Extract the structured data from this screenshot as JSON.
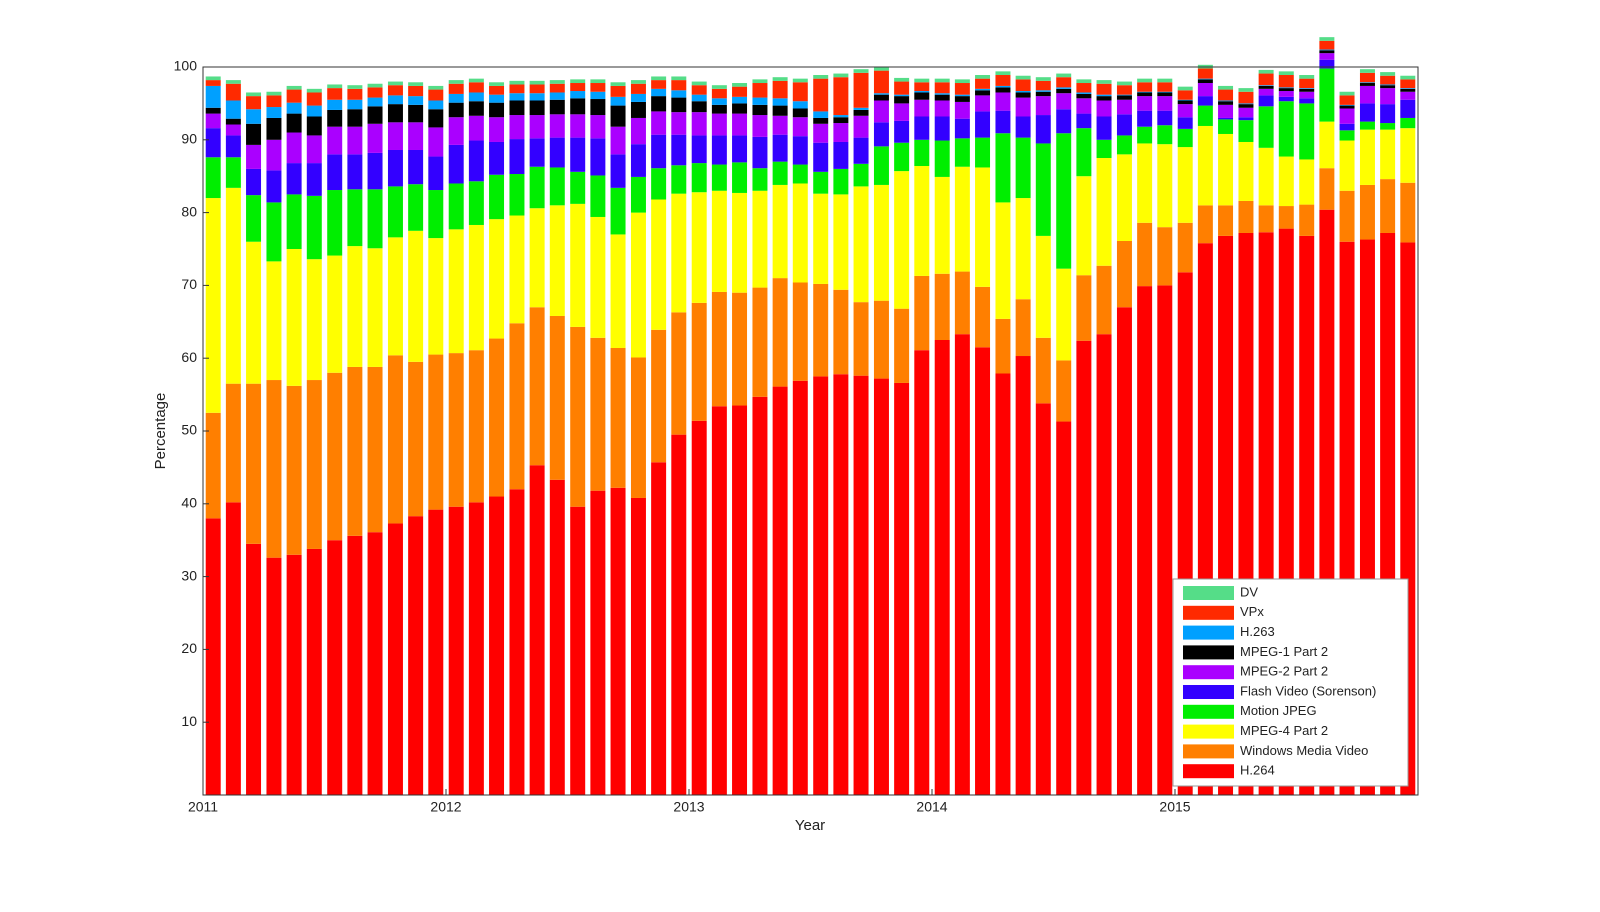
{
  "chart_data": {
    "type": "stacked-bar",
    "x_label": "Year",
    "y_label": "Percentage",
    "x": [
      2011.042,
      2011.125,
      2011.208,
      2011.292,
      2011.375,
      2011.458,
      2011.542,
      2011.625,
      2011.708,
      2011.792,
      2011.875,
      2011.958,
      2012.042,
      2012.125,
      2012.208,
      2012.292,
      2012.375,
      2012.458,
      2012.542,
      2012.625,
      2012.708,
      2012.792,
      2012.875,
      2012.958,
      2013.042,
      2013.125,
      2013.208,
      2013.292,
      2013.375,
      2013.458,
      2013.542,
      2013.625,
      2013.708,
      2013.792,
      2013.875,
      2013.958,
      2014.042,
      2014.125,
      2014.208,
      2014.292,
      2014.375,
      2014.458,
      2014.542,
      2014.625,
      2014.708,
      2014.792,
      2014.875,
      2014.958,
      2015.042,
      2015.125,
      2015.208,
      2015.292,
      2015.375,
      2015.458,
      2015.542,
      2015.625,
      2015.708,
      2015.792,
      2015.875,
      2015.958
    ],
    "xlim": [
      2011,
      2016
    ],
    "xticks": [
      2011,
      2012,
      2013,
      2014,
      2015
    ],
    "ylim": [
      0,
      100
    ],
    "yticks": [
      10,
      20,
      30,
      40,
      50,
      60,
      70,
      80,
      90,
      100
    ],
    "legend": "lower right",
    "series": [
      {
        "name": "H.264",
        "color": "#ff0000",
        "values": [
          38,
          40.2,
          34.5,
          32.6,
          33,
          33.8,
          35,
          35.6,
          36.1,
          37.3,
          38.3,
          39.2,
          39.6,
          40.2,
          41,
          42,
          45.3,
          43.3,
          39.6,
          41.8,
          42.2,
          40.8,
          45.7,
          49.5,
          51.4,
          53.4,
          53.5,
          54.7,
          56.1,
          56.9,
          57.5,
          57.8,
          57.6,
          57.2,
          56.6,
          61.1,
          62.5,
          63.3,
          61.5,
          57.9,
          60.3,
          53.8,
          51.3,
          62.4,
          63.3,
          67,
          69.9,
          70,
          71.8,
          75.8,
          76.8,
          77.2,
          77.3,
          77.8,
          76.8,
          80.4,
          76,
          76.3,
          77.2,
          75.9
        ]
      },
      {
        "name": "Windows Media Video",
        "color": "#ff7f00",
        "values": [
          14.5,
          16.3,
          22,
          24.4,
          23.2,
          23.2,
          23,
          23.2,
          22.7,
          23.1,
          21.2,
          21.3,
          21.1,
          20.9,
          21.7,
          22.8,
          21.7,
          22.5,
          24.7,
          21,
          19.2,
          19.3,
          18.2,
          16.8,
          16.2,
          15.7,
          15.5,
          15,
          14.9,
          13.5,
          12.7,
          11.6,
          10.1,
          10.7,
          10.2,
          10.2,
          9.1,
          8.6,
          8.3,
          7.5,
          7.8,
          9,
          8.4,
          9,
          9.4,
          9.1,
          8.7,
          8,
          6.8,
          5.2,
          4.2,
          4.4,
          3.7,
          3.1,
          4.3,
          5.7,
          7,
          7.5,
          7.4,
          8.2
        ]
      },
      {
        "name": "MPEG-4 Part 2",
        "color": "#ffff00",
        "values": [
          29.5,
          26.9,
          19.5,
          16.3,
          18.8,
          16.6,
          16.1,
          16.6,
          16.3,
          16.2,
          18,
          16,
          17,
          17.2,
          16.4,
          14.8,
          13.6,
          15.2,
          16.9,
          16.6,
          15.6,
          19.9,
          17.9,
          16.3,
          15.2,
          13.9,
          13.7,
          13.3,
          12.8,
          13.6,
          12.4,
          13.1,
          15.9,
          15.9,
          18.9,
          15.1,
          13.3,
          14.4,
          16.4,
          16,
          13.9,
          14,
          12.6,
          13.6,
          14.8,
          11.9,
          10.9,
          11.4,
          10.4,
          10.9,
          9.8,
          8.1,
          7.9,
          6.8,
          6.2,
          6.4,
          6.9,
          7.6,
          6.8,
          7.5
        ]
      },
      {
        "name": "Motion JPEG",
        "color": "#00ee00",
        "values": [
          5.6,
          4.2,
          6.4,
          8.1,
          7.5,
          8.7,
          9,
          7.8,
          8.1,
          7,
          6.4,
          6.6,
          6.3,
          6,
          6.1,
          5.7,
          5.7,
          5.2,
          4.4,
          5.7,
          6.4,
          4.9,
          4.3,
          3.9,
          4,
          3.6,
          4.2,
          3.1,
          3.2,
          2.6,
          3,
          3.5,
          3.1,
          5.3,
          3.9,
          3.6,
          5,
          3.9,
          4.1,
          9.5,
          8.3,
          12.7,
          18.6,
          6.6,
          2.5,
          2.6,
          2.3,
          2.6,
          2.5,
          2.8,
          2,
          3,
          5.7,
          7.6,
          7.7,
          7.3,
          1.4,
          1.1,
          0.9,
          1.4
        ]
      },
      {
        "name": "Flash Video (Sorenson)",
        "color": "#3300ff",
        "values": [
          4,
          3,
          3.6,
          4.4,
          4.3,
          4.5,
          4.9,
          4.8,
          5,
          5,
          4.7,
          4.6,
          5.3,
          5.6,
          4.5,
          4.8,
          3.9,
          4.1,
          4.7,
          5.1,
          4.6,
          4.5,
          4.6,
          4.2,
          3.8,
          4,
          3.7,
          4.3,
          3.7,
          3.9,
          4,
          3.7,
          3.6,
          3.3,
          3,
          3.2,
          3.3,
          2.7,
          3.6,
          3.1,
          2.9,
          3.9,
          3.3,
          2,
          3.2,
          2.9,
          2.2,
          2,
          1.6,
          1.3,
          0.2,
          0.4,
          1.5,
          0.6,
          0.7,
          1.2,
          0.9,
          2.5,
          2.6,
          2.5
        ]
      },
      {
        "name": "MPEG-2 Part 2",
        "color": "#aa00ff",
        "values": [
          2,
          1.5,
          3.3,
          4.2,
          4.2,
          3.8,
          3.8,
          3.8,
          4,
          3.8,
          3.8,
          4,
          3.8,
          3.4,
          3.4,
          3.3,
          3.2,
          3.2,
          3.2,
          3.2,
          3.8,
          3.6,
          3.2,
          3.1,
          3.2,
          3,
          3,
          3,
          2.6,
          2.6,
          2.6,
          2.6,
          3,
          3,
          2.4,
          2.3,
          2.2,
          2.3,
          2.2,
          2.5,
          2.6,
          2.6,
          2.2,
          2.1,
          2.2,
          2,
          2,
          2,
          1.8,
          1.8,
          1.8,
          1.3,
          0.9,
          0.8,
          0.9,
          0.9,
          2.1,
          2.4,
          2.2,
          1.1
        ]
      },
      {
        "name": "MPEG-1 Part 2",
        "color": "#000000",
        "values": [
          0.8,
          0.8,
          2.9,
          3,
          2.6,
          2.6,
          2.3,
          2.4,
          2.4,
          2.5,
          2.4,
          2.5,
          2,
          2,
          2,
          2,
          2,
          2,
          2.2,
          2.2,
          2.9,
          2.2,
          2.1,
          2,
          1.5,
          1.2,
          1.4,
          1.4,
          1.4,
          1.2,
          0.8,
          0.8,
          0.8,
          0.8,
          1,
          1,
          0.8,
          0.8,
          0.7,
          0.7,
          0.7,
          0.6,
          0.6,
          0.6,
          0.6,
          0.6,
          0.5,
          0.5,
          0.5,
          0.5,
          0.5,
          0.5,
          0.4,
          0.4,
          0.4,
          0.4,
          0.4,
          0.4,
          0.4,
          0.4
        ]
      },
      {
        "name": "H.263",
        "color": "#00a0ff",
        "values": [
          3,
          2.5,
          2,
          1.5,
          1.5,
          1.5,
          1.4,
          1.3,
          1.2,
          1.2,
          1.2,
          1.2,
          1.2,
          1.2,
          1.1,
          1,
          1,
          1,
          1,
          1,
          1.2,
          1.1,
          1,
          1,
          0.9,
          0.9,
          0.9,
          1,
          1,
          1,
          0.9,
          0.3,
          0.3,
          0.2,
          0.2,
          0.2,
          0.2,
          0.2,
          0.2,
          0.2,
          0.2,
          0.2,
          0.2,
          0.2,
          0.2,
          0.1,
          0.1,
          0.1,
          0.1,
          0.1,
          0.1,
          0.1,
          0.1,
          0.1,
          0.1,
          0.1,
          0.1,
          0.1,
          0.1,
          0.1
        ]
      },
      {
        "name": "VPx",
        "color": "#ff2a00",
        "values": [
          0.8,
          2.3,
          1.8,
          1.6,
          1.8,
          1.8,
          1.6,
          1.5,
          1.4,
          1.4,
          1.4,
          1.5,
          1.4,
          1.4,
          1.2,
          1.2,
          1.2,
          1.2,
          1.1,
          1.2,
          1.5,
          1.4,
          1.2,
          1.4,
          1.3,
          1.3,
          1.4,
          2,
          2.4,
          2.6,
          4.5,
          5.2,
          4.8,
          3.1,
          1.8,
          1.2,
          1.5,
          1.6,
          1.4,
          1.5,
          1.6,
          1.3,
          1.4,
          1.3,
          1.5,
          1.3,
          1.3,
          1.3,
          1.3,
          1.4,
          1.5,
          1.6,
          1.6,
          1.7,
          1.3,
          1.2,
          1.3,
          1.3,
          1.2,
          1.2
        ]
      },
      {
        "name": "DV",
        "color": "#55dd88",
        "values": [
          0.5,
          0.5,
          0.5,
          0.5,
          0.5,
          0.5,
          0.5,
          0.5,
          0.5,
          0.5,
          0.5,
          0.5,
          0.5,
          0.5,
          0.5,
          0.5,
          0.5,
          0.5,
          0.5,
          0.5,
          0.5,
          0.5,
          0.5,
          0.5,
          0.5,
          0.5,
          0.5,
          0.5,
          0.5,
          0.5,
          0.5,
          0.5,
          0.5,
          0.5,
          0.5,
          0.5,
          0.5,
          0.5,
          0.5,
          0.5,
          0.5,
          0.5,
          0.5,
          0.5,
          0.5,
          0.5,
          0.5,
          0.5,
          0.5,
          0.5,
          0.5,
          0.5,
          0.5,
          0.5,
          0.5,
          0.5,
          0.5,
          0.5,
          0.5,
          0.5
        ]
      }
    ]
  }
}
